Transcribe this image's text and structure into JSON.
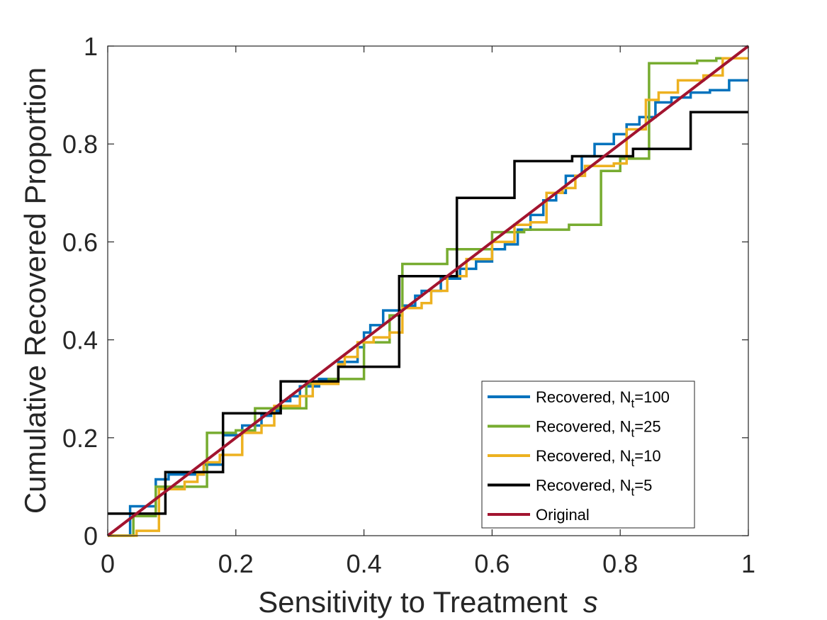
{
  "chart_data": {
    "type": "line",
    "title": "",
    "xlabel": "Sensitivity to Treatment",
    "xlabel_symbol": "s",
    "ylabel": "Cumulative Recovered Proportion",
    "xlim": [
      0,
      1
    ],
    "ylim": [
      0,
      1
    ],
    "xticks": [
      "0",
      "0.2",
      "0.4",
      "0.6",
      "0.8",
      "1"
    ],
    "yticks": [
      "0",
      "0.2",
      "0.4",
      "0.6",
      "0.8",
      "1"
    ],
    "grid": false,
    "legend_position": "bottom-right",
    "series": [
      {
        "name": "Recovered, N",
        "subscript": "t",
        "suffix": "=100",
        "color": "#0072BD",
        "step": true,
        "x": [
          0.0,
          0.035,
          0.075,
          0.095,
          0.15,
          0.18,
          0.21,
          0.24,
          0.255,
          0.27,
          0.285,
          0.3,
          0.33,
          0.36,
          0.39,
          0.4,
          0.41,
          0.43,
          0.46,
          0.48,
          0.49,
          0.52,
          0.55,
          0.575,
          0.6,
          0.62,
          0.64,
          0.66,
          0.68,
          0.7,
          0.715,
          0.74,
          0.76,
          0.79,
          0.81,
          0.83,
          0.855,
          0.88,
          0.91,
          0.94,
          0.97,
          1.0
        ],
        "y": [
          0.0,
          0.06,
          0.115,
          0.125,
          0.145,
          0.205,
          0.225,
          0.245,
          0.255,
          0.275,
          0.285,
          0.305,
          0.32,
          0.355,
          0.385,
          0.415,
          0.43,
          0.46,
          0.47,
          0.49,
          0.5,
          0.525,
          0.545,
          0.56,
          0.585,
          0.595,
          0.625,
          0.655,
          0.685,
          0.7,
          0.735,
          0.775,
          0.8,
          0.82,
          0.84,
          0.855,
          0.885,
          0.895,
          0.905,
          0.91,
          0.93,
          0.93
        ]
      },
      {
        "name": "Recovered, N",
        "subscript": "t",
        "suffix": "=25",
        "color": "#77AC30",
        "step": true,
        "x": [
          0.0,
          0.04,
          0.075,
          0.12,
          0.155,
          0.2,
          0.23,
          0.265,
          0.31,
          0.345,
          0.38,
          0.4,
          0.44,
          0.46,
          0.49,
          0.53,
          0.6,
          0.65,
          0.72,
          0.77,
          0.8,
          0.845,
          0.92,
          0.95,
          1.0
        ],
        "y": [
          0.0,
          0.04,
          0.1,
          0.1,
          0.21,
          0.215,
          0.26,
          0.26,
          0.31,
          0.32,
          0.32,
          0.395,
          0.45,
          0.555,
          0.555,
          0.585,
          0.62,
          0.625,
          0.635,
          0.745,
          0.77,
          0.965,
          0.97,
          0.975,
          0.975
        ]
      },
      {
        "name": "Recovered, N",
        "subscript": "t",
        "suffix": "=10",
        "color": "#EDB120",
        "step": true,
        "x": [
          0.0,
          0.045,
          0.08,
          0.12,
          0.14,
          0.15,
          0.175,
          0.21,
          0.24,
          0.26,
          0.3,
          0.32,
          0.36,
          0.37,
          0.39,
          0.415,
          0.44,
          0.46,
          0.49,
          0.505,
          0.53,
          0.56,
          0.6,
          0.635,
          0.66,
          0.685,
          0.71,
          0.73,
          0.745,
          0.79,
          0.81,
          0.84,
          0.86,
          0.89,
          0.93,
          0.96,
          1.0
        ],
        "y": [
          0.0,
          0.01,
          0.095,
          0.11,
          0.125,
          0.15,
          0.165,
          0.21,
          0.225,
          0.265,
          0.285,
          0.31,
          0.35,
          0.365,
          0.395,
          0.405,
          0.415,
          0.465,
          0.475,
          0.5,
          0.53,
          0.565,
          0.6,
          0.635,
          0.64,
          0.7,
          0.71,
          0.735,
          0.755,
          0.76,
          0.83,
          0.89,
          0.905,
          0.93,
          0.94,
          0.975,
          0.975
        ]
      },
      {
        "name": "Recovered, N",
        "subscript": "t",
        "suffix": "=5",
        "color": "#000000",
        "step": true,
        "x": [
          0.0,
          0.09,
          0.18,
          0.27,
          0.36,
          0.455,
          0.545,
          0.635,
          0.725,
          0.82,
          0.91,
          1.0
        ],
        "y": [
          0.045,
          0.13,
          0.25,
          0.315,
          0.345,
          0.53,
          0.69,
          0.765,
          0.775,
          0.79,
          0.865,
          0.865
        ]
      },
      {
        "name": "Original",
        "color": "#A2142F",
        "step": false,
        "x": [
          0,
          1
        ],
        "y": [
          0,
          1
        ]
      }
    ]
  }
}
